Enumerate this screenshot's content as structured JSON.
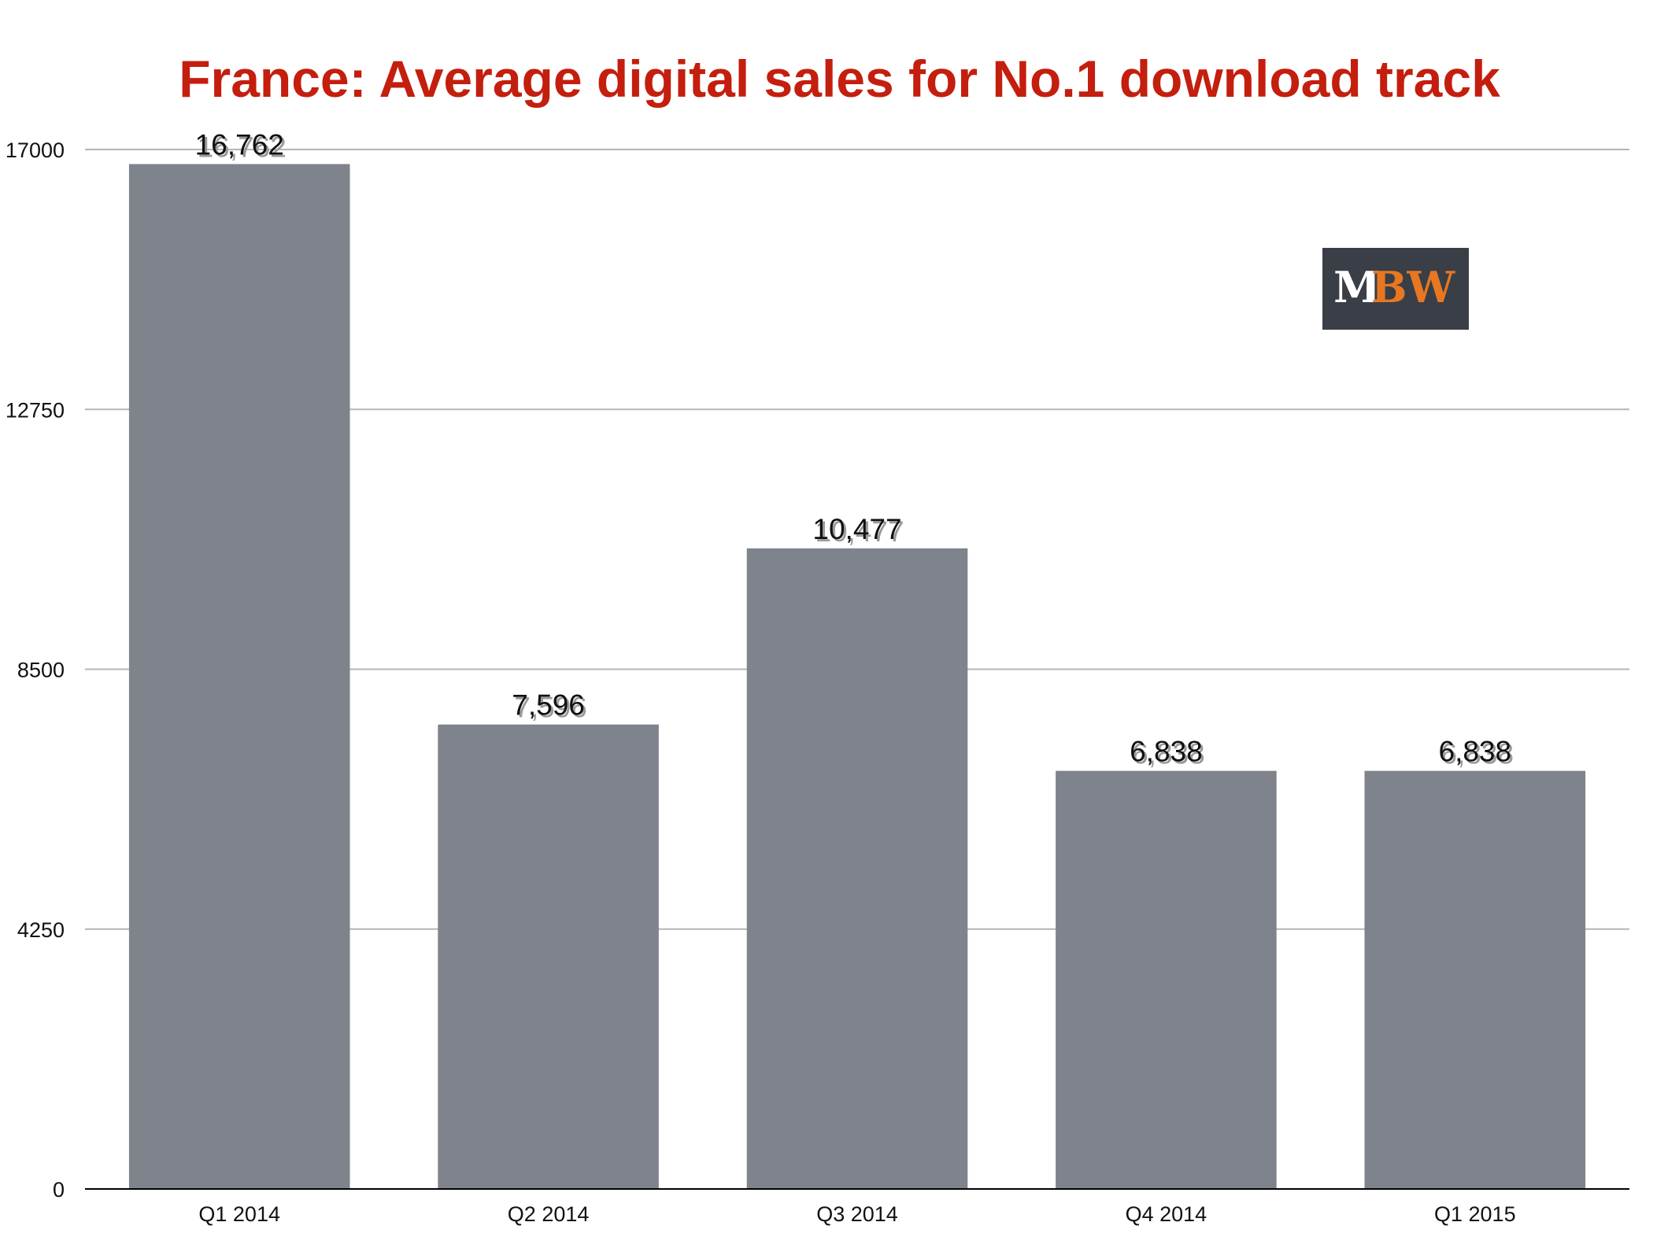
{
  "chart_data": {
    "type": "bar",
    "title": "France: Average digital sales for No.1 download track",
    "categories": [
      "Q1 2014",
      "Q2 2014",
      "Q3 2014",
      "Q4 2014",
      "Q1 2015"
    ],
    "values": [
      16762,
      7596,
      10477,
      6838,
      6838
    ],
    "data_labels": [
      "16,762",
      "7,596",
      "10,477",
      "6,838",
      "6,838"
    ],
    "yticks": [
      0,
      4250,
      8500,
      12750,
      17000
    ],
    "ylim": [
      0,
      17000
    ],
    "grid": true,
    "bar_color": "#7f838b",
    "title_color": "#c41e0e"
  },
  "logo": {
    "text_left": "M",
    "text_right": "BW",
    "bg_color": "#3a3e46",
    "left_color": "#ffffff",
    "right_color": "#e87722"
  }
}
